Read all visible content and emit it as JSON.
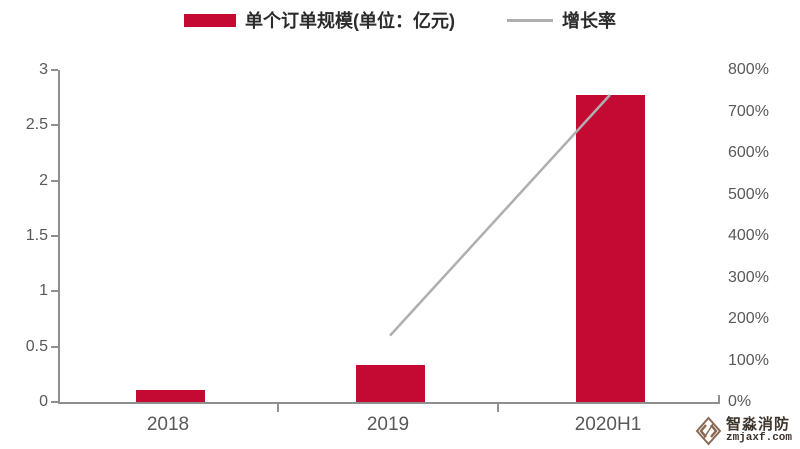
{
  "legend": {
    "items": [
      {
        "label": "单个订单规模(单位：亿元)",
        "swatch": "bar",
        "color": "#c40a33"
      },
      {
        "label": "增长率",
        "swatch": "line",
        "color": "#afafaf"
      }
    ]
  },
  "chart_data": {
    "type": "bar",
    "categories": [
      "2018",
      "2019",
      "2020H1"
    ],
    "series": [
      {
        "name": "单个订单规模(单位：亿元)",
        "type": "bar",
        "axis": "left",
        "unit": "亿元",
        "values": [
          0.11,
          0.33,
          2.77
        ],
        "color": "#c40a33"
      },
      {
        "name": "增长率",
        "type": "line",
        "axis": "right",
        "unit": "%",
        "values": [
          null,
          160,
          740
        ],
        "color": "#afafaf"
      }
    ],
    "left_axis": {
      "min": 0,
      "max": 3,
      "step": 0.5,
      "ticks": [
        "0",
        "0.5",
        "1",
        "1.5",
        "2",
        "2.5",
        "3"
      ]
    },
    "right_axis": {
      "min": 0,
      "max": 800,
      "step": 100,
      "ticks": [
        "0%",
        "100%",
        "200%",
        "300%",
        "400%",
        "500%",
        "600%",
        "700%",
        "800%"
      ]
    },
    "grid": false,
    "legend_position": "top",
    "axis_color": "#8f8f8f",
    "tick_label_color": "#595959"
  },
  "watermark": {
    "name": "智淼消防",
    "site": "zmjaxf.com"
  }
}
